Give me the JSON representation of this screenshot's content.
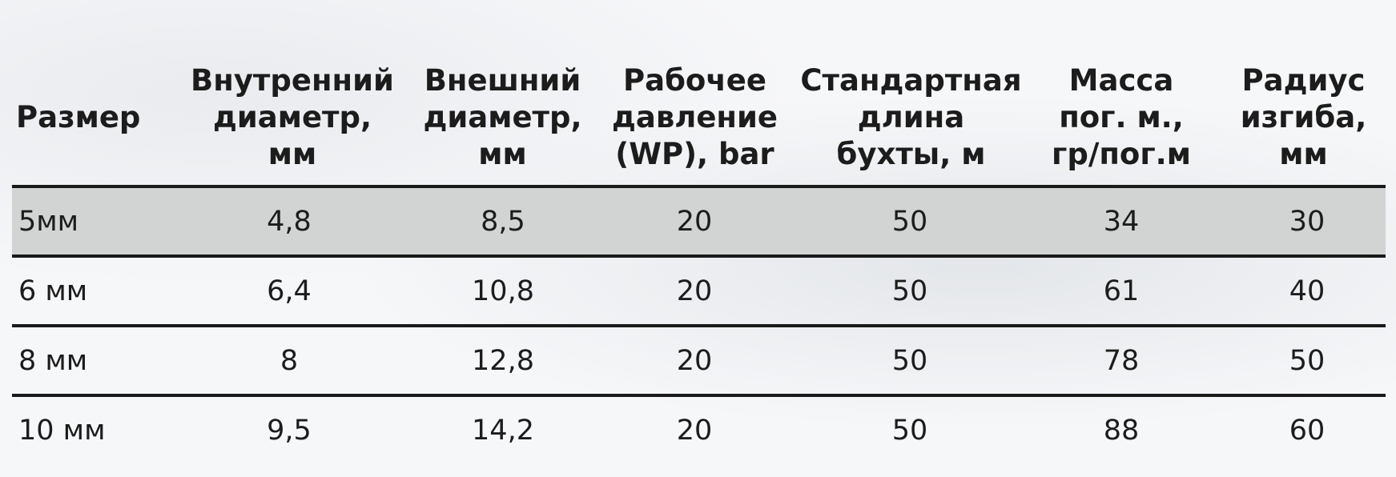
{
  "table": {
    "headers": [
      "Размер",
      "Внутренний\nдиаметр,\nмм",
      "Внешний\nдиаметр,\nмм",
      "Рабочее\nдавление\n(WP), bar",
      "Стандартная\nдлина\nбухты, м",
      "Масса\nпог. м.,\nгр/пог.м",
      "Радиус\nизгиба,\nмм"
    ],
    "rows": [
      [
        "5мм",
        "4,8",
        "8,5",
        "20",
        "50",
        "34",
        "30"
      ],
      [
        "6 мм",
        "6,4",
        "10,8",
        "20",
        "50",
        "61",
        "40"
      ],
      [
        "8 мм",
        "8",
        "12,8",
        "20",
        "50",
        "78",
        "50"
      ],
      [
        "10 мм",
        "9,5",
        "14,2",
        "20",
        "50",
        "88",
        "60"
      ]
    ],
    "highlight_color": "#d2d3d3"
  }
}
